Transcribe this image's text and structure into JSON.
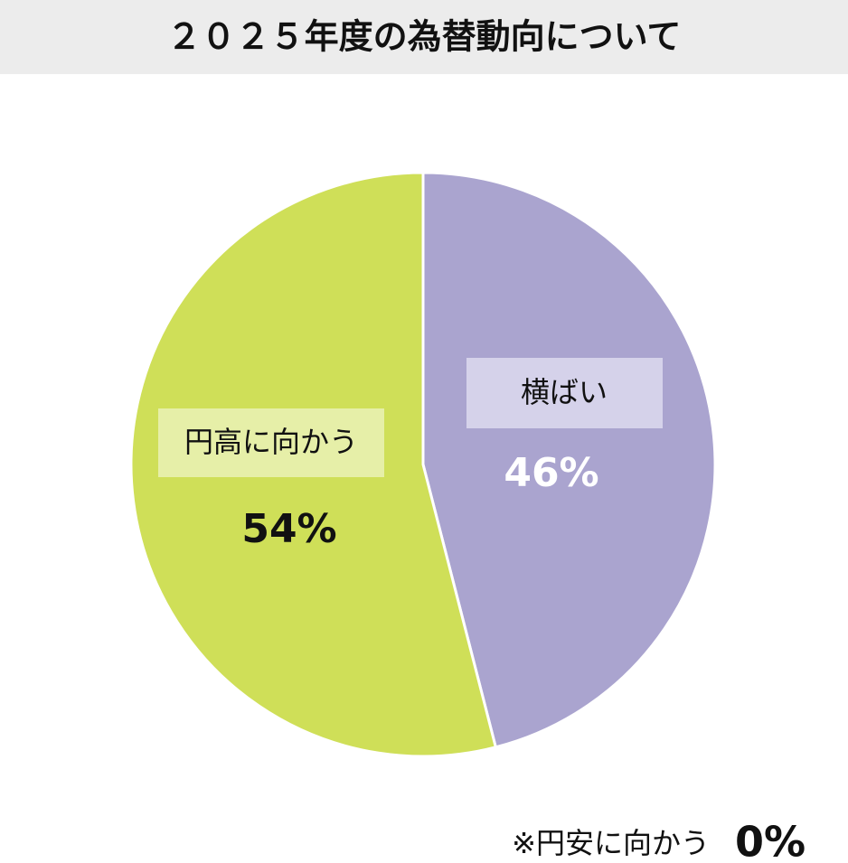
{
  "chart_data": {
    "type": "pie",
    "title": "２０２５年度の為替動向について",
    "categories": [
      "横ばい",
      "円高に向かう"
    ],
    "values": [
      46,
      54
    ],
    "value_labels": [
      "46%",
      "54%"
    ],
    "colors": [
      "#aaa4cf",
      "#cfdf58"
    ],
    "note": {
      "label": "※円安に向かう",
      "value": 0,
      "value_label": "0%"
    }
  }
}
